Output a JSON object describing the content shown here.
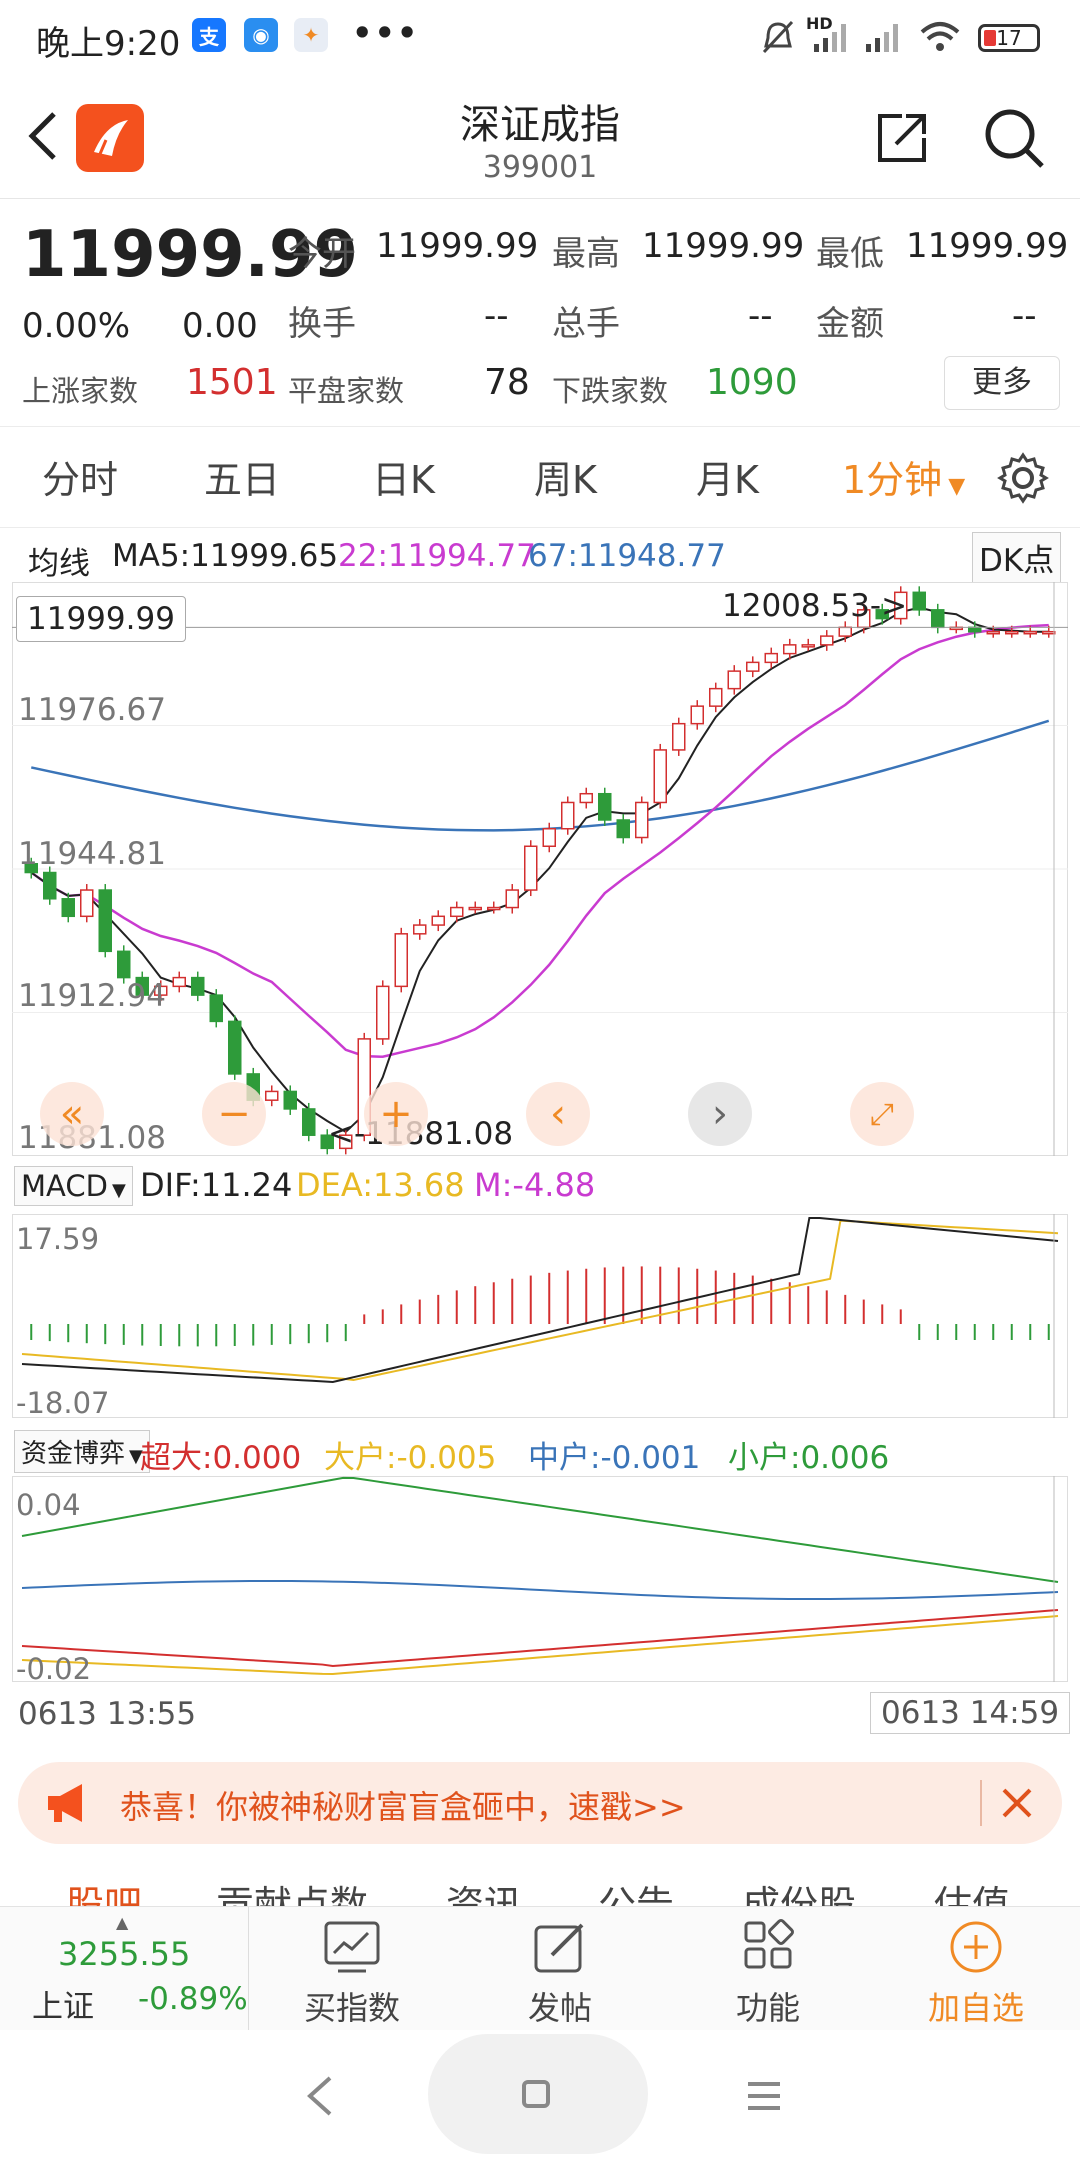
{
  "status_bar": {
    "time": "晚上9:20",
    "dots": "•••",
    "battery": "17",
    "hd": "HD"
  },
  "header": {
    "title": "深证成指",
    "code": "399001",
    "back_icon": "chevron-left-icon",
    "share_icon": "share-icon",
    "search_icon": "search-icon"
  },
  "quote": {
    "price": "11999.99",
    "change_pct": "0.00%",
    "change": "0.00",
    "open_label": "今开",
    "open": "11999.99",
    "high_label": "最高",
    "high": "11999.99",
    "low_label": "最低",
    "low": "11999.99",
    "turnover_label": "换手",
    "turnover": "--",
    "volume_label": "总手",
    "volume": "--",
    "amount_label": "金额",
    "amount": "--",
    "up_label": "上涨家数",
    "up": "1501",
    "flat_label": "平盘家数",
    "flat": "78",
    "down_label": "下跌家数",
    "down": "1090",
    "more": "更多"
  },
  "tabs": [
    "分时",
    "五日",
    "日K",
    "周K",
    "月K",
    "1分钟"
  ],
  "active_tab": "1分钟",
  "ma": {
    "label": "均线",
    "ma5": "MA5:11999.65",
    "ma22": "22:11994.77",
    "ma67": "67:11948.77",
    "dk": "DK点"
  },
  "price_chart": {
    "current_box": "11999.99",
    "high_marker": "12008.53",
    "low_marker": "11881.08",
    "y_labels": [
      "11976.67",
      "11944.81",
      "11912.94",
      "11881.08"
    ]
  },
  "macd": {
    "selector": "MACD",
    "dif": "DIF:11.24",
    "dea": "DEA:13.68",
    "m": "M:-4.88",
    "y_top": "17.59",
    "y_bottom": "-18.07"
  },
  "fund": {
    "selector": "资金博弈",
    "super": "超大:0.000",
    "large": "大户:-0.005",
    "mid": "中户:-0.001",
    "small": "小户:0.006",
    "y_top": "0.04",
    "y_bottom": "-0.02"
  },
  "time_axis": {
    "start": "0613 13:55",
    "end": "0613 14:59"
  },
  "banner": {
    "text": "恭喜！你被神秘财富盲盒砸中，速戳>>"
  },
  "sub_tabs": [
    "股吧",
    "贡献点数",
    "资讯",
    "公告",
    "成份股",
    "估值"
  ],
  "bottom_nav": {
    "index_value": "3255.55",
    "index_name": "上证",
    "index_change": "-0.89%",
    "items": [
      {
        "label": "买指数",
        "icon": "chart-icon"
      },
      {
        "label": "发帖",
        "icon": "edit-icon"
      },
      {
        "label": "功能",
        "icon": "grid-icon"
      },
      {
        "label": "加自选",
        "icon": "plus-circle-icon"
      }
    ]
  },
  "colors": {
    "up": "#d32f2f",
    "down": "#2e9b3a",
    "accent": "#f08a24",
    "ma5": "#222222",
    "ma22": "#c93bd0",
    "ma67": "#3a74b8",
    "dea": "#e8b923"
  },
  "chart_data": [
    {
      "type": "candlestick",
      "title": "",
      "x_range": [
        "0613 13:55",
        "0613 14:59"
      ],
      "ylim": [
        11881.08,
        12008.53
      ],
      "ma": {
        "MA5": 11999.65,
        "MA22": 11994.77,
        "MA67": 11948.77
      },
      "closes": [
        11944,
        11938,
        11934,
        11940,
        11926,
        11920,
        11916,
        11918,
        11920,
        11916,
        11910,
        11898,
        11892,
        11894,
        11890,
        11884,
        11881,
        11884,
        11906,
        11918,
        11930,
        11932,
        11934,
        11936,
        11936,
        11936,
        11940,
        11950,
        11954,
        11960,
        11962,
        11956,
        11952,
        11960,
        11972,
        11978,
        11982,
        11986,
        11990,
        11992,
        11994,
        11996,
        11996,
        11998,
        12000,
        12004,
        12002,
        12008,
        12004,
        12000,
        12000,
        11999,
        11999,
        11999,
        11999,
        11999
      ]
    },
    {
      "type": "line",
      "title": "MACD",
      "series": [
        {
          "name": "DIF",
          "last": 11.24
        },
        {
          "name": "DEA",
          "last": 13.68
        },
        {
          "name": "M",
          "last": -4.88
        }
      ],
      "ylim": [
        -18.07,
        17.59
      ]
    },
    {
      "type": "line",
      "title": "资金博弈",
      "series": [
        {
          "name": "超大",
          "last": 0.0
        },
        {
          "name": "大户",
          "last": -0.005
        },
        {
          "name": "中户",
          "last": -0.001
        },
        {
          "name": "小户",
          "last": 0.006
        }
      ],
      "ylim": [
        -0.02,
        0.04
      ]
    }
  ]
}
